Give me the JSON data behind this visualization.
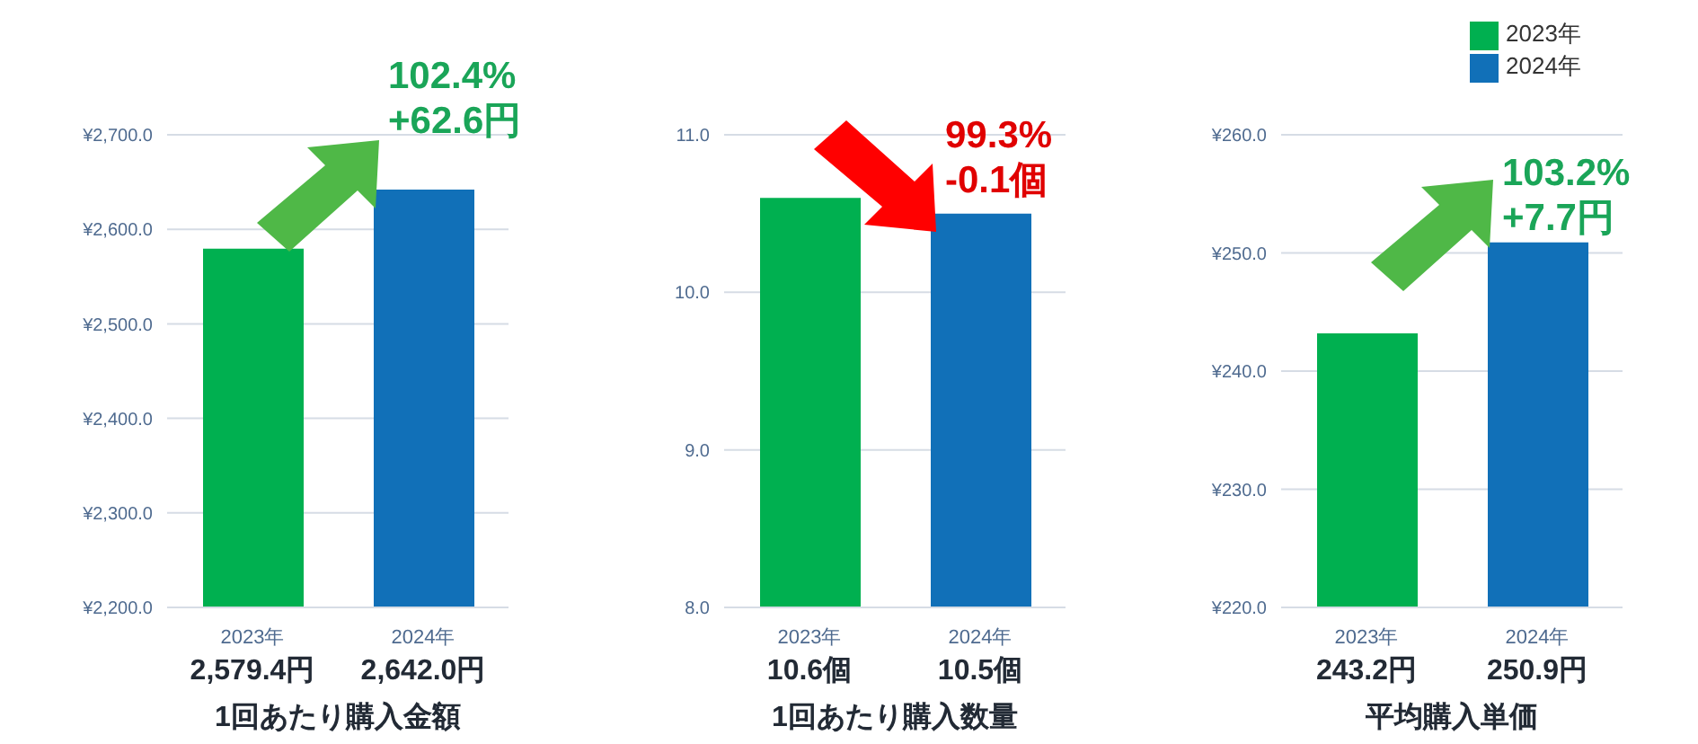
{
  "chart_data": [
    {
      "type": "bar",
      "xlabel": "1回あたり購入金額",
      "categories": [
        "2023年",
        "2024年"
      ],
      "series": [
        {
          "color": "#00b050",
          "values": [
            2579.4,
            null
          ],
          "value_labels": [
            "2,579.4円",
            null
          ]
        },
        {
          "color": "#1170b8",
          "values": [
            null,
            2642.0
          ],
          "value_labels": [
            null,
            "2,642.0円"
          ]
        }
      ],
      "ylim": [
        2200,
        2700
      ],
      "yticks": [
        {
          "value": 2200,
          "label": "¥2,200.0"
        },
        {
          "value": 2300,
          "label": "¥2,300.0"
        },
        {
          "value": 2400,
          "label": "¥2,400.0"
        },
        {
          "value": 2500,
          "label": "¥2,500.0"
        },
        {
          "value": 2600,
          "label": "¥2,600.0"
        },
        {
          "value": 2700,
          "label": "¥2,700.0"
        }
      ],
      "grid": "y",
      "annotations": [
        "102.4%",
        "+62.6円"
      ]
    },
    {
      "type": "bar",
      "xlabel": "1回あたり購入数量",
      "categories": [
        "2023年",
        "2024年"
      ],
      "series": [
        {
          "color": "#00b050",
          "values": [
            10.6,
            null
          ],
          "value_labels": [
            "10.6個",
            null
          ]
        },
        {
          "color": "#1170b8",
          "values": [
            null,
            10.5
          ],
          "value_labels": [
            null,
            "10.5個"
          ]
        }
      ],
      "ylim": [
        8,
        11
      ],
      "yticks": [
        {
          "value": 8,
          "label": "8.0"
        },
        {
          "value": 9,
          "label": "9.0"
        },
        {
          "value": 10,
          "label": "10.0"
        },
        {
          "value": 11,
          "label": "11.0"
        }
      ],
      "grid": "y",
      "annotations": [
        "99.3%",
        "-0.1個"
      ]
    },
    {
      "type": "bar",
      "xlabel": "平均購入単価",
      "categories": [
        "2023年",
        "2024年"
      ],
      "series": [
        {
          "name": "2023年",
          "color": "#00b050",
          "values": [
            243.2,
            null
          ],
          "value_labels": [
            "243.2円",
            null
          ]
        },
        {
          "name": "2024年",
          "color": "#1170b8",
          "values": [
            null,
            250.9
          ],
          "value_labels": [
            null,
            "250.9円"
          ]
        }
      ],
      "ylim": [
        220,
        260
      ],
      "yticks": [
        {
          "value": 220,
          "label": "¥220.0"
        },
        {
          "value": 230,
          "label": "¥230.0"
        },
        {
          "value": 240,
          "label": "¥240.0"
        },
        {
          "value": 250,
          "label": "¥250.0"
        },
        {
          "value": 260,
          "label": "¥260.0"
        }
      ],
      "grid": "y",
      "legend": "top right",
      "annotations": [
        "103.2%",
        "+7.7円"
      ]
    }
  ]
}
